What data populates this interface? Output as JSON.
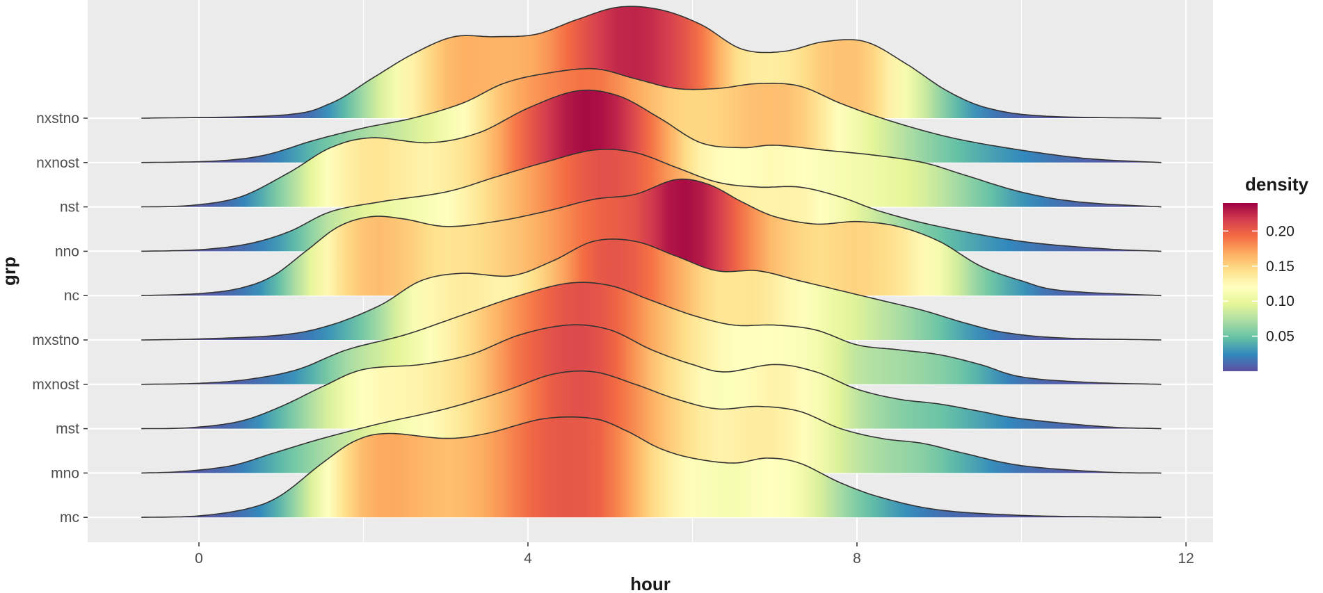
{
  "chart_data": {
    "type": "ridgeline",
    "xlabel": "hour",
    "ylabel": "grp",
    "xlim": [
      -1.4,
      12.3
    ],
    "x_ticks": [
      0,
      4,
      8,
      12
    ],
    "x_tick_labels": [
      "0",
      "4",
      "8",
      "12"
    ],
    "x_range_drawn": [
      -0.7,
      11.7
    ],
    "grid": true,
    "background": "#ebebeb",
    "gridline_color": "#ffffff",
    "outline_color": "#333333",
    "legend": {
      "title": "density",
      "position": "right",
      "palette": "Spectral",
      "range": [
        0,
        0.24
      ],
      "ticks": [
        0.05,
        0.1,
        0.15,
        0.2
      ],
      "tick_labels": [
        "0.05",
        "0.10",
        "0.15",
        "0.20"
      ],
      "colors": [
        "#5e4fa2",
        "#3288bd",
        "#66c2a5",
        "#abdda4",
        "#e6f598",
        "#ffffbf",
        "#fee08b",
        "#fdae61",
        "#f46d43",
        "#d53e4f",
        "#9e0142"
      ]
    },
    "series": [
      {
        "name": "mc",
        "points": [
          [
            -0.7,
            0.0
          ],
          [
            0,
            0.003
          ],
          [
            0.6,
            0.018
          ],
          [
            1.0,
            0.045
          ],
          [
            1.5,
            0.11
          ],
          [
            1.9,
            0.155
          ],
          [
            2.3,
            0.17
          ],
          [
            3,
            0.16
          ],
          [
            3.5,
            0.17
          ],
          [
            4.2,
            0.2
          ],
          [
            4.8,
            0.2
          ],
          [
            5.2,
            0.175
          ],
          [
            5.6,
            0.14
          ],
          [
            6,
            0.12
          ],
          [
            6.5,
            0.11
          ],
          [
            6.9,
            0.12
          ],
          [
            7.3,
            0.11
          ],
          [
            7.8,
            0.07
          ],
          [
            8.3,
            0.04
          ],
          [
            9,
            0.015
          ],
          [
            10,
            0.004
          ],
          [
            11,
            0.001
          ],
          [
            11.7,
            0.0
          ]
        ]
      },
      {
        "name": "mno",
        "points": [
          [
            -0.7,
            0.0
          ],
          [
            -0.2,
            0.003
          ],
          [
            0.4,
            0.015
          ],
          [
            0.9,
            0.04
          ],
          [
            1.5,
            0.07
          ],
          [
            2.2,
            0.1
          ],
          [
            3,
            0.13
          ],
          [
            3.7,
            0.165
          ],
          [
            4.3,
            0.2
          ],
          [
            4.8,
            0.205
          ],
          [
            5.3,
            0.18
          ],
          [
            5.8,
            0.15
          ],
          [
            6.3,
            0.13
          ],
          [
            6.8,
            0.135
          ],
          [
            7.3,
            0.125
          ],
          [
            7.8,
            0.09
          ],
          [
            8.3,
            0.07
          ],
          [
            8.8,
            0.06
          ],
          [
            9.3,
            0.04
          ],
          [
            10,
            0.015
          ],
          [
            11,
            0.002
          ],
          [
            11.7,
            0.0
          ]
        ]
      },
      {
        "name": "mst",
        "points": [
          [
            -0.7,
            0.0
          ],
          [
            -0.1,
            0.002
          ],
          [
            0.5,
            0.015
          ],
          [
            1,
            0.045
          ],
          [
            1.5,
            0.085
          ],
          [
            2,
            0.12
          ],
          [
            2.7,
            0.13
          ],
          [
            3.3,
            0.15
          ],
          [
            3.9,
            0.19
          ],
          [
            4.5,
            0.21
          ],
          [
            5,
            0.2
          ],
          [
            5.5,
            0.16
          ],
          [
            6,
            0.13
          ],
          [
            6.4,
            0.115
          ],
          [
            7,
            0.13
          ],
          [
            7.5,
            0.115
          ],
          [
            8,
            0.08
          ],
          [
            8.5,
            0.06
          ],
          [
            9,
            0.05
          ],
          [
            9.5,
            0.035
          ],
          [
            10,
            0.02
          ],
          [
            11,
            0.004
          ],
          [
            11.7,
            0.0
          ]
        ]
      },
      {
        "name": "mxnost",
        "points": [
          [
            -0.7,
            0.0
          ],
          [
            0,
            0.002
          ],
          [
            0.6,
            0.01
          ],
          [
            1.2,
            0.03
          ],
          [
            1.8,
            0.07
          ],
          [
            2.5,
            0.1
          ],
          [
            3.2,
            0.14
          ],
          [
            3.9,
            0.18
          ],
          [
            4.5,
            0.205
          ],
          [
            5,
            0.2
          ],
          [
            5.5,
            0.17
          ],
          [
            6,
            0.14
          ],
          [
            6.5,
            0.12
          ],
          [
            7,
            0.12
          ],
          [
            7.5,
            0.11
          ],
          [
            8,
            0.08
          ],
          [
            8.5,
            0.07
          ],
          [
            9,
            0.06
          ],
          [
            9.5,
            0.04
          ],
          [
            10,
            0.015
          ],
          [
            10.8,
            0.004
          ],
          [
            11.7,
            0.0
          ]
        ]
      },
      {
        "name": "mxstno",
        "points": [
          [
            -0.7,
            0.0
          ],
          [
            0,
            0.002
          ],
          [
            1,
            0.01
          ],
          [
            1.6,
            0.03
          ],
          [
            2.2,
            0.07
          ],
          [
            2.7,
            0.12
          ],
          [
            3.2,
            0.135
          ],
          [
            3.8,
            0.13
          ],
          [
            4.3,
            0.16
          ],
          [
            4.8,
            0.2
          ],
          [
            5.3,
            0.2
          ],
          [
            5.8,
            0.17
          ],
          [
            6.3,
            0.14
          ],
          [
            6.8,
            0.14
          ],
          [
            7.3,
            0.12
          ],
          [
            7.8,
            0.1
          ],
          [
            8.3,
            0.08
          ],
          [
            8.8,
            0.06
          ],
          [
            9.3,
            0.035
          ],
          [
            9.8,
            0.015
          ],
          [
            10.5,
            0.004
          ],
          [
            11.7,
            0.0
          ]
        ]
      },
      {
        "name": "nc",
        "points": [
          [
            -0.7,
            0.0
          ],
          [
            0,
            0.004
          ],
          [
            0.5,
            0.015
          ],
          [
            0.9,
            0.04
          ],
          [
            1.3,
            0.09
          ],
          [
            1.7,
            0.14
          ],
          [
            2.1,
            0.16
          ],
          [
            2.5,
            0.155
          ],
          [
            3,
            0.14
          ],
          [
            3.6,
            0.15
          ],
          [
            4.2,
            0.17
          ],
          [
            4.8,
            0.195
          ],
          [
            5.3,
            0.205
          ],
          [
            5.8,
            0.235
          ],
          [
            6.2,
            0.225
          ],
          [
            6.6,
            0.19
          ],
          [
            7,
            0.16
          ],
          [
            7.5,
            0.145
          ],
          [
            8,
            0.15
          ],
          [
            8.5,
            0.14
          ],
          [
            9,
            0.11
          ],
          [
            9.5,
            0.06
          ],
          [
            10,
            0.03
          ],
          [
            10.5,
            0.01
          ],
          [
            11.7,
            0.0
          ]
        ]
      },
      {
        "name": "nno",
        "points": [
          [
            -0.7,
            0.0
          ],
          [
            0,
            0.003
          ],
          [
            0.6,
            0.015
          ],
          [
            1.1,
            0.04
          ],
          [
            1.6,
            0.08
          ],
          [
            2.2,
            0.1
          ],
          [
            3,
            0.12
          ],
          [
            3.6,
            0.15
          ],
          [
            4.2,
            0.18
          ],
          [
            4.8,
            0.205
          ],
          [
            5.3,
            0.2
          ],
          [
            5.8,
            0.17
          ],
          [
            6.3,
            0.14
          ],
          [
            6.8,
            0.13
          ],
          [
            7.3,
            0.13
          ],
          [
            7.8,
            0.11
          ],
          [
            8.3,
            0.08
          ],
          [
            9,
            0.05
          ],
          [
            10,
            0.02
          ],
          [
            11,
            0.005
          ],
          [
            11.7,
            0.0
          ]
        ]
      },
      {
        "name": "nst",
        "points": [
          [
            -0.7,
            0.0
          ],
          [
            -0.1,
            0.003
          ],
          [
            0.5,
            0.02
          ],
          [
            1.1,
            0.07
          ],
          [
            1.6,
            0.12
          ],
          [
            2.1,
            0.14
          ],
          [
            2.8,
            0.13
          ],
          [
            3.4,
            0.15
          ],
          [
            4.0,
            0.2
          ],
          [
            4.6,
            0.235
          ],
          [
            5.1,
            0.225
          ],
          [
            5.6,
            0.18
          ],
          [
            6.1,
            0.13
          ],
          [
            6.6,
            0.12
          ],
          [
            7,
            0.125
          ],
          [
            7.6,
            0.115
          ],
          [
            8.2,
            0.105
          ],
          [
            8.8,
            0.09
          ],
          [
            9.3,
            0.065
          ],
          [
            10,
            0.03
          ],
          [
            10.7,
            0.01
          ],
          [
            11.7,
            0.0
          ]
        ]
      },
      {
        "name": "nxnost",
        "points": [
          [
            -0.7,
            0.0
          ],
          [
            0.2,
            0.003
          ],
          [
            0.8,
            0.015
          ],
          [
            1.4,
            0.045
          ],
          [
            2,
            0.07
          ],
          [
            2.6,
            0.09
          ],
          [
            3.2,
            0.12
          ],
          [
            3.7,
            0.16
          ],
          [
            4.2,
            0.18
          ],
          [
            4.8,
            0.19
          ],
          [
            5.3,
            0.17
          ],
          [
            5.8,
            0.15
          ],
          [
            6.3,
            0.15
          ],
          [
            6.8,
            0.16
          ],
          [
            7.3,
            0.155
          ],
          [
            7.8,
            0.12
          ],
          [
            8.3,
            0.09
          ],
          [
            8.8,
            0.065
          ],
          [
            9.3,
            0.045
          ],
          [
            10,
            0.025
          ],
          [
            10.8,
            0.008
          ],
          [
            11.7,
            0.0
          ]
        ]
      },
      {
        "name": "nxstno",
        "points": [
          [
            -0.7,
            0.0
          ],
          [
            1,
            0.006
          ],
          [
            1.6,
            0.03
          ],
          [
            2.1,
            0.08
          ],
          [
            2.6,
            0.13
          ],
          [
            3.1,
            0.165
          ],
          [
            3.6,
            0.165
          ],
          [
            4.1,
            0.17
          ],
          [
            4.6,
            0.2
          ],
          [
            5.1,
            0.225
          ],
          [
            5.6,
            0.22
          ],
          [
            6.1,
            0.19
          ],
          [
            6.6,
            0.14
          ],
          [
            7.1,
            0.135
          ],
          [
            7.6,
            0.155
          ],
          [
            8.1,
            0.155
          ],
          [
            8.6,
            0.11
          ],
          [
            9.1,
            0.055
          ],
          [
            9.6,
            0.02
          ],
          [
            10.3,
            0.004
          ],
          [
            11.7,
            0.0
          ]
        ]
      }
    ]
  }
}
